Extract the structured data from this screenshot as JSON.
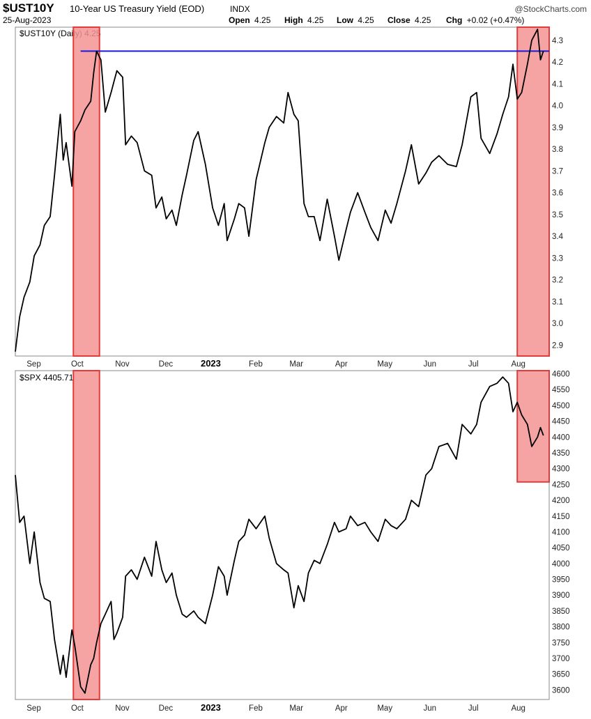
{
  "header": {
    "ticker": "$UST10Y",
    "description": "10-Year US Treasury Yield (EOD)",
    "exchange": "INDX",
    "date": "25-Aug-2023",
    "source": "@StockCharts.com",
    "quote": {
      "open_label": "Open",
      "open": "4.25",
      "high_label": "High",
      "high": "4.25",
      "low_label": "Low",
      "low": "4.25",
      "close_label": "Close",
      "close": "4.25",
      "chg_label": "Chg",
      "chg": "+0.02 (+0.47%)"
    }
  },
  "colors": {
    "line": "#000000",
    "reference_line": "#1a1adc",
    "highlight_fill": "#f39393",
    "highlight_stroke": "#e23b3b"
  },
  "chart_data": [
    {
      "type": "line",
      "legend": "$UST10Y (Daily) 4.25",
      "ylim": [
        2.85,
        4.36
      ],
      "yticks": [
        2.9,
        3.0,
        3.1,
        3.2,
        3.3,
        3.4,
        3.5,
        3.6,
        3.7,
        3.8,
        3.9,
        4.0,
        4.1,
        4.2,
        4.3
      ],
      "xlim": [
        "2022-08-26",
        "2023-08-29"
      ],
      "xticks": [
        {
          "date": "2022-09-01",
          "label": "Sep"
        },
        {
          "date": "2022-10-01",
          "label": "Oct"
        },
        {
          "date": "2022-11-01",
          "label": "Nov"
        },
        {
          "date": "2022-12-01",
          "label": "Dec"
        },
        {
          "date": "2023-01-01",
          "label": "2023",
          "bold": true
        },
        {
          "date": "2023-02-01",
          "label": "Feb"
        },
        {
          "date": "2023-03-01",
          "label": "Mar"
        },
        {
          "date": "2023-04-01",
          "label": "Apr"
        },
        {
          "date": "2023-05-01",
          "label": "May"
        },
        {
          "date": "2023-06-01",
          "label": "Jun"
        },
        {
          "date": "2023-07-01",
          "label": "Jul"
        },
        {
          "date": "2023-08-01",
          "label": "Aug"
        }
      ],
      "reference_line": {
        "y": 4.25,
        "from": "2022-10-10",
        "to": "2023-08-29"
      },
      "highlight_ranges": [
        {
          "from": "2022-10-05",
          "to": "2022-10-23",
          "y_from": 2.85,
          "y_to": 4.36
        },
        {
          "from": "2023-08-07",
          "to": "2023-08-29",
          "y_from": 2.85,
          "y_to": 4.36
        }
      ],
      "series": [
        {
          "x": [
            "2022-08-26",
            "2022-08-29",
            "2022-09-01",
            "2022-09-05",
            "2022-09-08",
            "2022-09-12",
            "2022-09-15",
            "2022-09-19",
            "2022-09-22",
            "2022-09-26",
            "2022-09-28",
            "2022-09-30",
            "2022-10-04",
            "2022-10-06",
            "2022-10-10",
            "2022-10-13",
            "2022-10-17",
            "2022-10-19",
            "2022-10-21",
            "2022-10-24",
            "2022-10-27",
            "2022-10-31",
            "2022-11-02",
            "2022-11-04",
            "2022-11-08",
            "2022-11-10",
            "2022-11-14",
            "2022-11-18",
            "2022-11-23",
            "2022-11-28",
            "2022-12-01",
            "2022-12-05",
            "2022-12-08",
            "2022-12-12",
            "2022-12-15",
            "2022-12-19",
            "2022-12-22",
            "2022-12-27",
            "2022-12-30",
            "2023-01-04",
            "2023-01-09",
            "2023-01-13",
            "2023-01-17",
            "2023-01-19",
            "2023-01-24",
            "2023-01-27",
            "2023-01-31",
            "2023-02-03",
            "2023-02-08",
            "2023-02-14",
            "2023-02-17",
            "2023-02-22",
            "2023-02-27",
            "2023-03-02",
            "2023-03-06",
            "2023-03-09",
            "2023-03-13",
            "2023-03-16",
            "2023-03-20",
            "2023-03-24",
            "2023-03-29",
            "2023-04-03",
            "2023-04-06",
            "2023-04-11",
            "2023-04-14",
            "2023-04-19",
            "2023-04-24",
            "2023-04-28",
            "2023-05-03",
            "2023-05-08",
            "2023-05-12",
            "2023-05-16",
            "2023-05-22",
            "2023-05-26",
            "2023-05-31",
            "2023-06-05",
            "2023-06-09",
            "2023-06-14",
            "2023-06-20",
            "2023-06-26",
            "2023-06-30",
            "2023-07-06",
            "2023-07-10",
            "2023-07-13",
            "2023-07-19",
            "2023-07-24",
            "2023-07-28",
            "2023-08-01",
            "2023-08-04",
            "2023-08-07",
            "2023-08-10",
            "2023-08-14",
            "2023-08-17",
            "2023-08-21",
            "2023-08-23",
            "2023-08-25"
          ],
          "values": [
            2.87,
            3.03,
            3.12,
            3.19,
            3.31,
            3.36,
            3.45,
            3.49,
            3.68,
            3.96,
            3.75,
            3.83,
            3.63,
            3.88,
            3.93,
            3.98,
            4.02,
            4.15,
            4.25,
            4.21,
            3.97,
            4.06,
            4.11,
            4.16,
            4.13,
            3.82,
            3.86,
            3.83,
            3.7,
            3.68,
            3.53,
            3.58,
            3.48,
            3.52,
            3.45,
            3.59,
            3.68,
            3.84,
            3.88,
            3.73,
            3.53,
            3.45,
            3.55,
            3.38,
            3.48,
            3.55,
            3.53,
            3.4,
            3.66,
            3.83,
            3.9,
            3.95,
            3.92,
            4.06,
            3.96,
            3.93,
            3.55,
            3.49,
            3.49,
            3.38,
            3.57,
            3.4,
            3.29,
            3.43,
            3.51,
            3.6,
            3.51,
            3.44,
            3.38,
            3.52,
            3.46,
            3.55,
            3.7,
            3.82,
            3.64,
            3.69,
            3.74,
            3.77,
            3.73,
            3.72,
            3.82,
            4.04,
            4.06,
            3.85,
            3.78,
            3.87,
            3.96,
            4.04,
            4.19,
            4.03,
            4.06,
            4.19,
            4.3,
            4.35,
            4.21,
            4.25
          ]
        }
      ]
    },
    {
      "type": "line",
      "legend": "$SPX 4405.71",
      "ylim": [
        3570,
        4610
      ],
      "yticks": [
        3600,
        3650,
        3700,
        3750,
        3800,
        3850,
        3900,
        3950,
        4000,
        4050,
        4100,
        4150,
        4200,
        4250,
        4300,
        4350,
        4400,
        4450,
        4500,
        4550,
        4600
      ],
      "xlim": [
        "2022-08-26",
        "2023-08-29"
      ],
      "xticks": [
        {
          "date": "2022-09-01",
          "label": "Sep"
        },
        {
          "date": "2022-10-01",
          "label": "Oct"
        },
        {
          "date": "2022-11-01",
          "label": "Nov"
        },
        {
          "date": "2022-12-01",
          "label": "Dec"
        },
        {
          "date": "2023-01-01",
          "label": "2023",
          "bold": true
        },
        {
          "date": "2023-02-01",
          "label": "Feb"
        },
        {
          "date": "2023-03-01",
          "label": "Mar"
        },
        {
          "date": "2023-04-01",
          "label": "Apr"
        },
        {
          "date": "2023-05-01",
          "label": "May"
        },
        {
          "date": "2023-06-01",
          "label": "Jun"
        },
        {
          "date": "2023-07-01",
          "label": "Jul"
        },
        {
          "date": "2023-08-01",
          "label": "Aug"
        }
      ],
      "highlight_ranges": [
        {
          "from": "2022-10-05",
          "to": "2022-10-23",
          "y_from": 3570,
          "y_to": 4610
        },
        {
          "from": "2023-08-07",
          "to": "2023-08-29",
          "y_from": 4258,
          "y_to": 4610
        }
      ],
      "series": [
        {
          "x": [
            "2022-08-26",
            "2022-08-29",
            "2022-09-01",
            "2022-09-05",
            "2022-09-08",
            "2022-09-12",
            "2022-09-15",
            "2022-09-19",
            "2022-09-22",
            "2022-09-26",
            "2022-09-28",
            "2022-09-30",
            "2022-10-04",
            "2022-10-06",
            "2022-10-10",
            "2022-10-13",
            "2022-10-17",
            "2022-10-19",
            "2022-10-21",
            "2022-10-24",
            "2022-10-27",
            "2022-10-31",
            "2022-11-02",
            "2022-11-04",
            "2022-11-08",
            "2022-11-10",
            "2022-11-14",
            "2022-11-18",
            "2022-11-23",
            "2022-11-28",
            "2022-12-01",
            "2022-12-05",
            "2022-12-08",
            "2022-12-12",
            "2022-12-15",
            "2022-12-19",
            "2022-12-22",
            "2022-12-27",
            "2022-12-30",
            "2023-01-04",
            "2023-01-09",
            "2023-01-13",
            "2023-01-17",
            "2023-01-19",
            "2023-01-24",
            "2023-01-27",
            "2023-01-31",
            "2023-02-03",
            "2023-02-08",
            "2023-02-14",
            "2023-02-17",
            "2023-02-22",
            "2023-02-27",
            "2023-03-02",
            "2023-03-06",
            "2023-03-09",
            "2023-03-13",
            "2023-03-16",
            "2023-03-20",
            "2023-03-24",
            "2023-03-29",
            "2023-04-03",
            "2023-04-06",
            "2023-04-11",
            "2023-04-14",
            "2023-04-19",
            "2023-04-24",
            "2023-04-28",
            "2023-05-03",
            "2023-05-08",
            "2023-05-12",
            "2023-05-16",
            "2023-05-22",
            "2023-05-26",
            "2023-05-31",
            "2023-06-05",
            "2023-06-09",
            "2023-06-14",
            "2023-06-20",
            "2023-06-26",
            "2023-06-30",
            "2023-07-06",
            "2023-07-10",
            "2023-07-13",
            "2023-07-19",
            "2023-07-24",
            "2023-07-28",
            "2023-08-01",
            "2023-08-04",
            "2023-08-07",
            "2023-08-10",
            "2023-08-14",
            "2023-08-17",
            "2023-08-21",
            "2023-08-23",
            "2023-08-25"
          ],
          "values": [
            4280,
            4130,
            4150,
            4000,
            4100,
            3940,
            3890,
            3880,
            3760,
            3650,
            3710,
            3640,
            3790,
            3740,
            3610,
            3590,
            3680,
            3700,
            3750,
            3810,
            3840,
            3880,
            3760,
            3780,
            3830,
            3960,
            3980,
            3950,
            4020,
            3960,
            4070,
            3980,
            3940,
            3970,
            3900,
            3840,
            3830,
            3850,
            3830,
            3810,
            3900,
            3990,
            3960,
            3900,
            4010,
            4070,
            4090,
            4140,
            4110,
            4150,
            4080,
            4000,
            3980,
            3970,
            3860,
            3930,
            3880,
            3970,
            4010,
            4000,
            4060,
            4130,
            4100,
            4110,
            4150,
            4120,
            4130,
            4100,
            4070,
            4140,
            4120,
            4110,
            4140,
            4200,
            4180,
            4280,
            4300,
            4370,
            4380,
            4330,
            4440,
            4410,
            4440,
            4510,
            4560,
            4570,
            4590,
            4570,
            4480,
            4510,
            4470,
            4440,
            4370,
            4400,
            4430,
            4405
          ]
        }
      ]
    }
  ]
}
